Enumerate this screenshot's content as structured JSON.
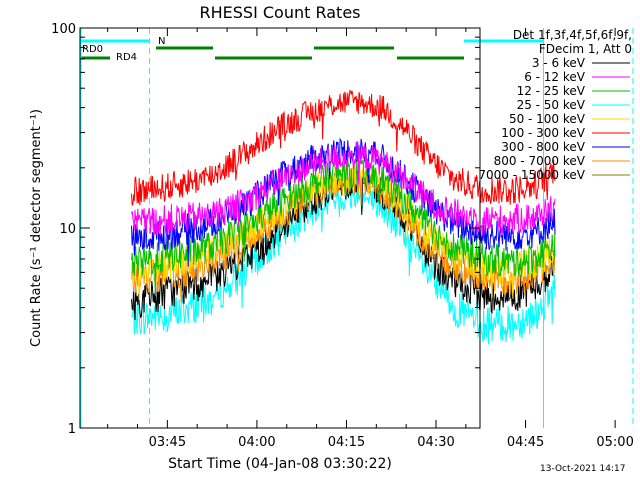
{
  "chart_data": {
    "type": "line",
    "title": "RHESSI Count Rates",
    "xlabel": "Start Time (04-Jan-08 03:30:22)",
    "ylabel": "Count Rate (s⁻¹ detector segment⁻¹)",
    "yscale": "log",
    "ylim": [
      1,
      100
    ],
    "xlim_minutes": [
      0,
      67
    ],
    "x_ticks": [
      "03:45",
      "04:00",
      "04:15",
      "04:30",
      "04:45",
      "05:00"
    ],
    "y_ticks": [
      "1",
      "10",
      "100"
    ],
    "legend_header": [
      "Det 1f,3f,4f,5f,6f,9f,",
      "FDecim 1, Att 0"
    ],
    "legend_position": "right",
    "x_times": [
      "03:39",
      "03:45",
      "03:52",
      "03:58",
      "04:04",
      "04:09",
      "04:13",
      "04:17",
      "04:21",
      "04:25",
      "04:29",
      "04:33",
      "04:38",
      "04:43",
      "04:47",
      "04:50"
    ],
    "series": [
      {
        "name": "3 - 6 keV",
        "color": "#000000",
        "values": [
          4.2,
          4.8,
          5.4,
          7.0,
          10.0,
          13.5,
          16.0,
          17.0,
          15.0,
          11.0,
          7.0,
          5.3,
          4.6,
          4.6,
          5.2,
          6.5
        ]
      },
      {
        "name": "6 - 12 keV",
        "color": "#ff00ff",
        "values": [
          10.5,
          11.0,
          11.5,
          13.5,
          17.5,
          20.5,
          22.5,
          23.0,
          21.5,
          17.5,
          13.5,
          11.8,
          11.0,
          11.0,
          11.5,
          13.0
        ]
      },
      {
        "name": "12 - 25 keV",
        "color": "#00c000",
        "values": [
          6.6,
          7.2,
          8.0,
          10.0,
          13.5,
          16.5,
          18.5,
          19.0,
          17.5,
          13.5,
          10.0,
          8.0,
          7.0,
          6.8,
          7.2,
          8.5
        ]
      },
      {
        "name": "25 - 50 keV",
        "color": "#00ffff",
        "values": [
          3.5,
          3.7,
          4.3,
          6.0,
          9.0,
          12.0,
          14.0,
          14.5,
          12.5,
          9.0,
          5.6,
          4.0,
          3.3,
          3.3,
          3.8,
          5.0
        ]
      },
      {
        "name": "50 - 100 keV",
        "color": "#ffd700",
        "values": [
          6.0,
          6.6,
          7.6,
          9.5,
          12.5,
          15.5,
          17.5,
          18.0,
          16.5,
          12.5,
          9.0,
          7.2,
          6.4,
          6.3,
          6.8,
          8.0
        ]
      },
      {
        "name": "100 - 300 keV",
        "color": "#ff0000",
        "values": [
          15.0,
          16.0,
          18.0,
          23.5,
          32.0,
          38.0,
          42.0,
          43.0,
          40.0,
          31.0,
          22.0,
          17.5,
          15.5,
          15.5,
          16.5,
          20.0
        ]
      },
      {
        "name": "300 - 800 keV",
        "color": "#0000ff",
        "values": [
          8.7,
          9.3,
          10.5,
          13.0,
          18.0,
          22.0,
          24.0,
          24.5,
          22.5,
          17.5,
          13.0,
          10.5,
          9.2,
          9.2,
          9.6,
          11.0
        ]
      },
      {
        "name": "800 - 7000 keV",
        "color": "#ff8c00",
        "values": [
          5.6,
          5.8,
          6.6,
          8.6,
          11.5,
          14.5,
          16.5,
          17.0,
          15.5,
          11.5,
          8.0,
          6.5,
          5.7,
          5.6,
          6.0,
          7.0
        ]
      },
      {
        "name": "7000 - 15000 keV",
        "color": "#808000",
        "values": []
      }
    ],
    "flags": {
      "label_n": "N",
      "label_rd0": "RD0",
      "label_rd4": "RD4",
      "color_n": "#00ffff",
      "color_rd": "#008000"
    },
    "marker_times": [
      "03:42",
      "04:48",
      "05:03"
    ]
  },
  "footer": {
    "timestamp": "13-Oct-2021 14:17"
  }
}
